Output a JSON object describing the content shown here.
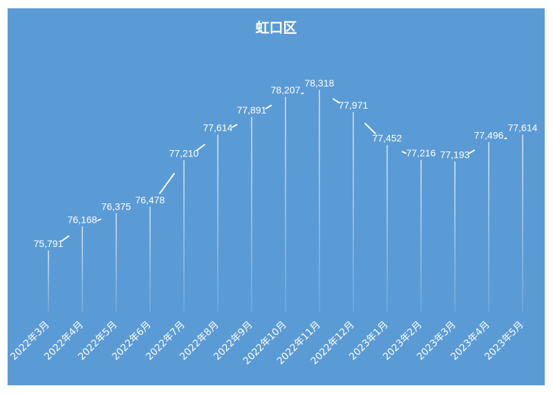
{
  "chart_data": {
    "type": "line",
    "title": "虹口区",
    "categories": [
      "2022年3月",
      "2022年4月",
      "2022年5月",
      "2022年6月",
      "2022年7月",
      "2022年8月",
      "2022年9月",
      "2022年10月",
      "2022年11月",
      "2022年12月",
      "2023年1月",
      "2023年2月",
      "2023年3月",
      "2023年4月",
      "2023年5月"
    ],
    "values": [
      75791,
      76168,
      76375,
      76478,
      77210,
      77614,
      77891,
      78207,
      78318,
      77971,
      77452,
      77216,
      77193,
      77496,
      77614
    ],
    "value_labels": [
      "75,791",
      "76,168",
      "76,375",
      "76,478",
      "77,210",
      "77,614",
      "77,891",
      "78,207",
      "78,318",
      "77,971",
      "77,452",
      "77,216",
      "77,193",
      "77,496",
      "77,614"
    ],
    "drop_lines": true,
    "grid": false,
    "legend": "none",
    "colors": {
      "background": "#5B9BD5",
      "line": "#ffffff",
      "text": "#ffffff"
    }
  }
}
